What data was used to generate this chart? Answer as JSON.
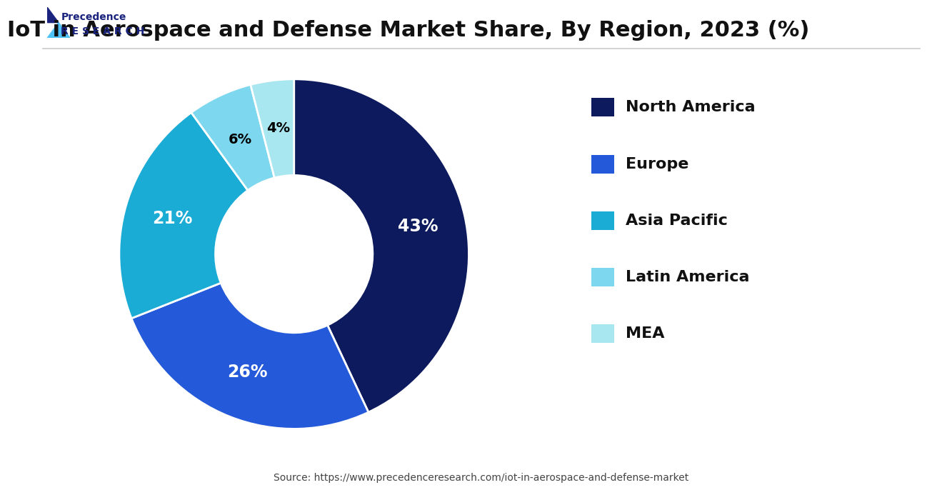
{
  "title": "IoT in Aerospace and Defense Market Share, By Region, 2023 (%)",
  "regions": [
    "North America",
    "Europe",
    "Asia Pacific",
    "Latin America",
    "MEA"
  ],
  "values": [
    43,
    26,
    21,
    6,
    4
  ],
  "colors": [
    "#0d1b5e",
    "#2459d9",
    "#1bacd6",
    "#7dd8ef",
    "#a8e6f0"
  ],
  "label_colors": [
    "white",
    "white",
    "white",
    "black",
    "black"
  ],
  "wedge_labels": [
    "43%",
    "26%",
    "21%",
    "6%",
    "4%"
  ],
  "background_color": "#ffffff",
  "source_text": "Source: https://www.precedenceresearch.com/iot-in-aerospace-and-defense-market",
  "title_fontsize": 22,
  "legend_fontsize": 16,
  "label_fontsize": 17
}
